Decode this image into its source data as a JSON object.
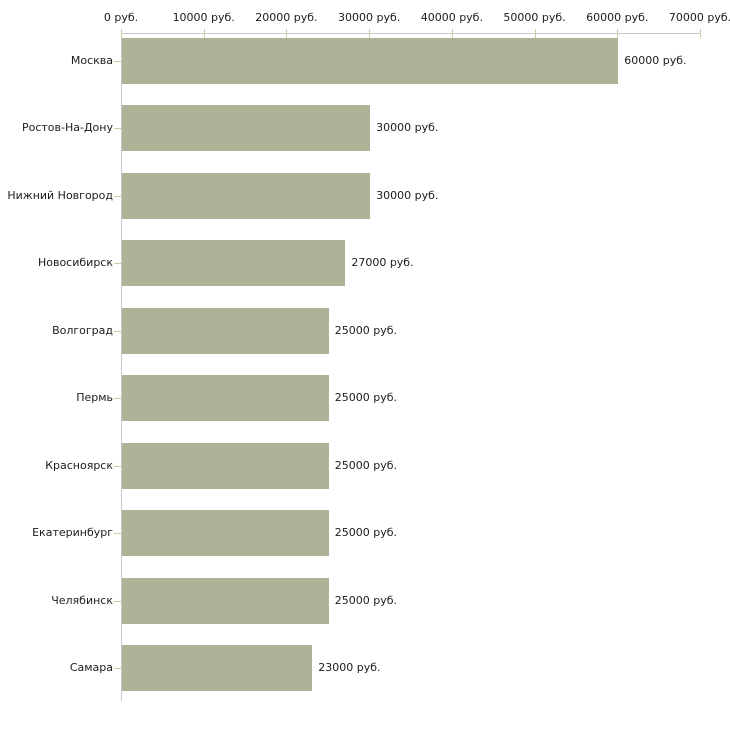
{
  "chart_data": {
    "type": "bar",
    "orientation": "horizontal",
    "title": "",
    "xlabel": "",
    "ylabel": "",
    "grid": false,
    "legend": "none",
    "categories": [
      "Москва",
      "Ростов-На-Дону",
      "Нижний Новгород",
      "Новосибирск",
      "Волгоград",
      "Пермь",
      "Красноярск",
      "Екатеринбург",
      "Челябинск",
      "Самара"
    ],
    "values": [
      60000,
      30000,
      30000,
      27000,
      25000,
      25000,
      25000,
      25000,
      25000,
      23000
    ],
    "bar_labels": [
      "60000 руб.",
      "30000 руб.",
      "30000 руб.",
      "27000 руб.",
      "25000 руб.",
      "25000 руб.",
      "25000 руб.",
      "25000 руб.",
      "25000 руб.",
      "23000 руб."
    ],
    "x_axis": {
      "position": "top",
      "range": [
        0,
        70000
      ],
      "ticks": [
        0,
        10000,
        20000,
        30000,
        40000,
        50000,
        60000,
        70000
      ],
      "tick_labels": [
        "0 руб.",
        "10000 руб.",
        "20000 руб.",
        "30000 руб.",
        "40000 руб.",
        "50000 руб.",
        "60000 руб.",
        "70000 руб."
      ]
    },
    "colors": {
      "bar": "#aeb296",
      "axis_line": "#c9c9c9",
      "tick": "#cdcda0",
      "text": "#1c1c1c",
      "background": "#ffffff"
    }
  }
}
